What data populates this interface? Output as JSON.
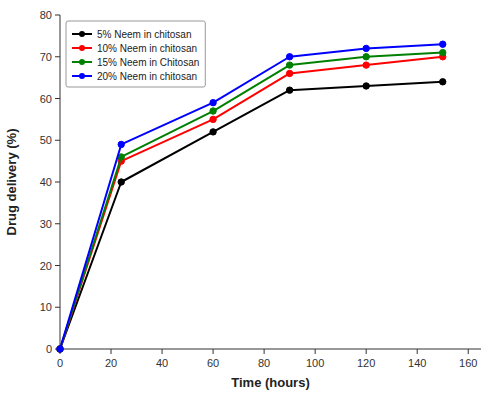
{
  "chart_data": {
    "type": "line",
    "x": [
      0,
      24,
      60,
      90,
      120,
      150
    ],
    "series": [
      {
        "name": "5% Neem in chitosan",
        "color": "#000000",
        "values": [
          0,
          40,
          52,
          62,
          63,
          64
        ]
      },
      {
        "name": "10% Neem in chitosan",
        "color": "#ff0000",
        "values": [
          0,
          45,
          55,
          66,
          68,
          70
        ]
      },
      {
        "name": "15% Neem in Chitosan",
        "color": "#008000",
        "values": [
          0,
          46,
          57,
          68,
          70,
          71
        ]
      },
      {
        "name": "20% Neem in chitosan",
        "color": "#0000ff",
        "values": [
          0,
          49,
          59,
          70,
          72,
          73
        ]
      }
    ],
    "xlabel": "Time (hours)",
    "ylabel": "Drug delivery (%)",
    "xlim": [
      0,
      165
    ],
    "ylim": [
      0,
      80
    ],
    "xticks": [
      0,
      20,
      40,
      60,
      80,
      100,
      120,
      140,
      160
    ],
    "yticks": [
      0,
      10,
      20,
      30,
      40,
      50,
      60,
      70,
      80
    ],
    "marker": "circle",
    "legend": "upper left",
    "grid": false
  }
}
